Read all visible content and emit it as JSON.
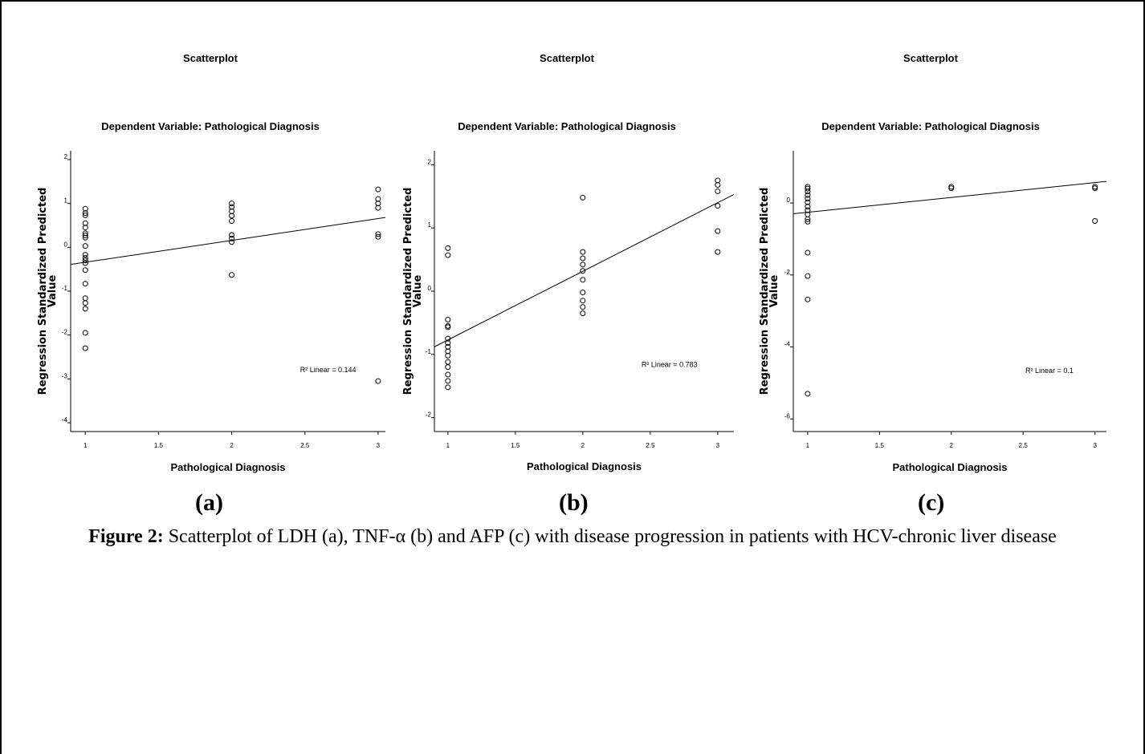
{
  "chart_data": [
    {
      "type": "scatter",
      "panel_label": "(a)",
      "title": "Scatterplot",
      "subtitle": "Dependent Variable: Pathological Diagnosis",
      "xlabel": "Pathological Diagnosis",
      "ylabel_lines": [
        "Regression Standardized Predicted",
        "Value"
      ],
      "xlim": [
        0.9,
        3.05
      ],
      "ylim": [
        -4.2,
        2.2
      ],
      "xticks": [
        "1",
        "1.5",
        "2",
        "2.5",
        "3"
      ],
      "yticks": [
        "2",
        "1",
        "0",
        "-1",
        "-2",
        "-3",
        "-4"
      ],
      "points": [
        {
          "x": 1,
          "y": 0.88
        },
        {
          "x": 1,
          "y": 0.78
        },
        {
          "x": 1,
          "y": 0.73
        },
        {
          "x": 1,
          "y": 0.55
        },
        {
          "x": 1,
          "y": 0.45
        },
        {
          "x": 1,
          "y": 0.32
        },
        {
          "x": 1,
          "y": 0.27
        },
        {
          "x": 1,
          "y": 0.22
        },
        {
          "x": 1,
          "y": 0.03
        },
        {
          "x": 1,
          "y": -0.17
        },
        {
          "x": 1,
          "y": -0.24
        },
        {
          "x": 1,
          "y": -0.3
        },
        {
          "x": 1,
          "y": -0.36
        },
        {
          "x": 1,
          "y": -0.52
        },
        {
          "x": 1,
          "y": -0.83
        },
        {
          "x": 1,
          "y": -1.16
        },
        {
          "x": 1,
          "y": -1.27
        },
        {
          "x": 1,
          "y": -1.4
        },
        {
          "x": 1,
          "y": -1.95
        },
        {
          "x": 1,
          "y": -2.3
        },
        {
          "x": 2,
          "y": 1.0
        },
        {
          "x": 2,
          "y": 0.92
        },
        {
          "x": 2,
          "y": 0.82
        },
        {
          "x": 2,
          "y": 0.72
        },
        {
          "x": 2,
          "y": 0.6
        },
        {
          "x": 2,
          "y": 0.28
        },
        {
          "x": 2,
          "y": 0.2
        },
        {
          "x": 2,
          "y": 0.12
        },
        {
          "x": 2,
          "y": -0.63
        },
        {
          "x": 3,
          "y": 1.32
        },
        {
          "x": 3,
          "y": 1.1
        },
        {
          "x": 3,
          "y": 1.0
        },
        {
          "x": 3,
          "y": 0.9
        },
        {
          "x": 3,
          "y": 0.3
        },
        {
          "x": 3,
          "y": 0.24
        },
        {
          "x": 3,
          "y": -3.05
        }
      ],
      "fit_line": {
        "x": [
          0.9,
          3.05
        ],
        "y": [
          -0.39,
          0.68
        ]
      },
      "annotation": "R² Linear = 0.144",
      "annotation_pos": {
        "x": 2.85,
        "y": -2.85
      }
    },
    {
      "type": "scatter",
      "panel_label": "(b)",
      "title": "Scatterplot",
      "subtitle": "Dependent Variable: Pathological Diagnosis",
      "xlabel": "Pathological Diagnosis",
      "ylabel_lines": [
        "Regression Standardized Predicted",
        "Value"
      ],
      "xlim": [
        0.9,
        3.12
      ],
      "ylim": [
        -2.22,
        2.22
      ],
      "xticks": [
        "1",
        "1.5",
        "2",
        "2.5",
        "3"
      ],
      "yticks": [
        "2",
        "1",
        "0",
        "-1",
        "-2"
      ],
      "points": [
        {
          "x": 1,
          "y": 0.68
        },
        {
          "x": 1,
          "y": 0.57
        },
        {
          "x": 1,
          "y": -0.45
        },
        {
          "x": 1,
          "y": -0.55
        },
        {
          "x": 1,
          "y": -0.57
        },
        {
          "x": 1,
          "y": -0.75
        },
        {
          "x": 1,
          "y": -0.82
        },
        {
          "x": 1,
          "y": -0.88
        },
        {
          "x": 1,
          "y": -0.95
        },
        {
          "x": 1,
          "y": -1.02
        },
        {
          "x": 1,
          "y": -1.12
        },
        {
          "x": 1,
          "y": -1.2
        },
        {
          "x": 1,
          "y": -1.32
        },
        {
          "x": 1,
          "y": -1.42
        },
        {
          "x": 1,
          "y": -1.52
        },
        {
          "x": 2,
          "y": 1.48
        },
        {
          "x": 2,
          "y": 0.62
        },
        {
          "x": 2,
          "y": 0.52
        },
        {
          "x": 2,
          "y": 0.42
        },
        {
          "x": 2,
          "y": 0.32
        },
        {
          "x": 2,
          "y": 0.18
        },
        {
          "x": 2,
          "y": -0.02
        },
        {
          "x": 2,
          "y": -0.15
        },
        {
          "x": 2,
          "y": -0.25
        },
        {
          "x": 2,
          "y": -0.35
        },
        {
          "x": 3,
          "y": 1.75
        },
        {
          "x": 3,
          "y": 1.68
        },
        {
          "x": 3,
          "y": 1.58
        },
        {
          "x": 3,
          "y": 1.35
        },
        {
          "x": 3,
          "y": 0.95
        },
        {
          "x": 3,
          "y": 0.62
        }
      ],
      "fit_line": {
        "x": [
          0.9,
          3.12
        ],
        "y": [
          -0.88,
          1.53
        ]
      },
      "annotation": "R² Linear = 0.783",
      "annotation_pos": {
        "x": 2.85,
        "y": -1.2
      }
    },
    {
      "type": "scatter",
      "panel_label": "(c)",
      "title": "Scatterplot",
      "subtitle": "Dependent Variable: Pathological Diagnosis",
      "xlabel": "Pathological Diagnosis",
      "ylabel_lines": [
        "Regression Standardized Predicted",
        "Value"
      ],
      "xlim": [
        0.9,
        3.08
      ],
      "ylim": [
        -6.35,
        1.45
      ],
      "xticks": [
        "1",
        "1.5",
        "2",
        "2.5",
        "3"
      ],
      "yticks": [
        "0",
        "-2",
        "-4",
        "-6"
      ],
      "points": [
        {
          "x": 1,
          "y": 0.45
        },
        {
          "x": 1,
          "y": 0.4
        },
        {
          "x": 1,
          "y": 0.32
        },
        {
          "x": 1,
          "y": 0.22
        },
        {
          "x": 1,
          "y": 0.12
        },
        {
          "x": 1,
          "y": 0.02
        },
        {
          "x": 1,
          "y": -0.1
        },
        {
          "x": 1,
          "y": -0.2
        },
        {
          "x": 1,
          "y": -0.32
        },
        {
          "x": 1,
          "y": -0.45
        },
        {
          "x": 1,
          "y": -0.52
        },
        {
          "x": 1,
          "y": -1.38
        },
        {
          "x": 1,
          "y": -2.03
        },
        {
          "x": 1,
          "y": -2.68
        },
        {
          "x": 1,
          "y": -5.3
        },
        {
          "x": 2,
          "y": 0.45
        },
        {
          "x": 2,
          "y": 0.41
        },
        {
          "x": 3,
          "y": 0.45
        },
        {
          "x": 3,
          "y": 0.41
        },
        {
          "x": 3,
          "y": -0.5
        }
      ],
      "fit_line": {
        "x": [
          0.9,
          3.08
        ],
        "y": [
          -0.3,
          0.6
        ]
      },
      "annotation": "R² Linear = 0.1",
      "annotation_pos": {
        "x": 2.85,
        "y": -4.72
      }
    }
  ],
  "caption": {
    "bold": "Figure 2:",
    "text": " Scatterplot of LDH (a), TNF-α (b) and AFP (c) with disease progression in patients with HCV-chronic liver disease"
  }
}
